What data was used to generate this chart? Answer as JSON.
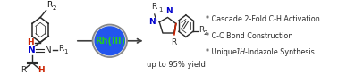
{
  "bg_color": "#ffffff",
  "arrow_color": "#404040",
  "circle_fill": "#2255ee",
  "circle_edge": "#666666",
  "rh_text": "Rh(III)",
  "rh_color": "#22cc22",
  "yield_text": "up to 95% yield",
  "bullet1": "* Cascade 2-Fold C-H Activation",
  "bullet2": "* C-C Bond Construction",
  "bullet3_pre": "* Unique ",
  "bullet3_italic": "1H",
  "bullet3_post": "-Indazole Synthesis",
  "figsize": [
    3.78,
    0.84
  ],
  "dpi": 100
}
